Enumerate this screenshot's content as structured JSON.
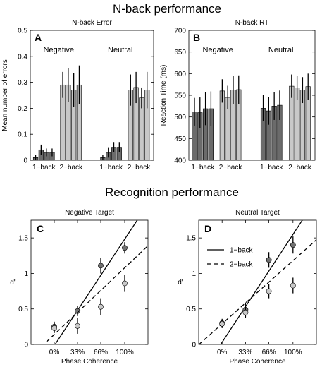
{
  "titles": {
    "top": "N-back performance",
    "bottom": "Recognition performance"
  },
  "colors": {
    "dark_bar": "#6b6b6b",
    "light_bar": "#c8c8c8",
    "dark_marker": "#707070",
    "light_marker": "#c9c9c9"
  },
  "chart_data": [
    {
      "panel": "A",
      "type": "bar",
      "title": "N-back Error",
      "ylabel": "Mean number of errors",
      "xlabel": "",
      "ylim": [
        0,
        0.5
      ],
      "yticks": [
        "0",
        "0.1",
        "0.2",
        "0.3",
        "0.4",
        "0.5"
      ],
      "group_labels": [
        "Negative",
        "Neutral"
      ],
      "xtick_labels": [
        "1−back",
        "2−back",
        "1−back",
        "2−back"
      ],
      "groups": [
        {
          "name": "Negative",
          "one_back": {
            "values": [
              0.01,
              0.04,
              0.03,
              0.03
            ],
            "err": [
              0.01,
              0.02,
              0.015,
              0.015
            ]
          },
          "two_back": {
            "values": [
              0.29,
              0.29,
              0.27,
              0.29
            ],
            "err": [
              0.05,
              0.065,
              0.065,
              0.075
            ]
          }
        },
        {
          "name": "Neutral",
          "one_back": {
            "values": [
              0.01,
              0.03,
              0.05,
              0.05
            ],
            "err": [
              0.01,
              0.02,
              0.02,
              0.02
            ]
          },
          "two_back": {
            "values": [
              0.27,
              0.28,
              0.24,
              0.27
            ],
            "err": [
              0.06,
              0.06,
              0.04,
              0.07
            ]
          }
        }
      ]
    },
    {
      "panel": "B",
      "type": "bar",
      "title": "N-back RT",
      "ylabel": "Reaction Time (ms)",
      "xlabel": "",
      "ylim": [
        400,
        700
      ],
      "yticks": [
        "400",
        "450",
        "500",
        "550",
        "600",
        "650",
        "700"
      ],
      "group_labels": [
        "Negative",
        "Neutral"
      ],
      "xtick_labels": [
        "1−back",
        "2−back",
        "1−back",
        "2−back"
      ],
      "groups": [
        {
          "name": "Negative",
          "one_back": {
            "values": [
              512,
              510,
              519,
              519
            ],
            "err": [
              32,
              35,
              38,
              40
            ]
          },
          "two_back": {
            "values": [
              560,
              545,
              562,
              563
            ],
            "err": [
              27,
              27,
              32,
              33
            ]
          }
        },
        {
          "name": "Neutral",
          "one_back": {
            "values": [
              520,
              514,
              525,
              527
            ],
            "err": [
              30,
              32,
              32,
              34
            ]
          },
          "two_back": {
            "values": [
              571,
              567,
              562,
              570
            ],
            "err": [
              27,
              28,
              30,
              30
            ]
          }
        }
      ]
    },
    {
      "panel": "C",
      "type": "scatter",
      "title": "Negative Target",
      "xlabel": "Phase Coherence",
      "ylabel": "d'",
      "xtick_labels": [
        "0%",
        "33%",
        "66%",
        "100%"
      ],
      "x": [
        0,
        33,
        66,
        100
      ],
      "xlim": [
        -33,
        133
      ],
      "ylim": [
        0,
        1.75
      ],
      "yticks": [
        "0",
        "0.5",
        "1",
        "1.5"
      ],
      "series": [
        {
          "name": "1-back",
          "y": [
            0.25,
            0.47,
            1.11,
            1.36
          ],
          "err": [
            0.07,
            0.07,
            0.11,
            0.08
          ],
          "fit": [
            -0.017,
            1.5
          ]
        },
        {
          "name": "2-back",
          "y": [
            0.23,
            0.26,
            0.53,
            0.86
          ],
          "err": [
            0.07,
            0.11,
            0.12,
            0.12
          ],
          "fit": [
            0.14,
            0.94
          ]
        }
      ]
    },
    {
      "panel": "D",
      "type": "scatter",
      "title": "Neutral Target",
      "xlabel": "Phase Coherence",
      "ylabel": "d'",
      "xtick_labels": [
        "0%",
        "33%",
        "66%",
        "100%"
      ],
      "x": [
        0,
        33,
        66,
        100
      ],
      "xlim": [
        -33,
        133
      ],
      "ylim": [
        0,
        1.75
      ],
      "yticks": [
        "0",
        "0.5",
        "1",
        "1.5"
      ],
      "legend": [
        "1−back",
        "2−back"
      ],
      "legend_position": "top-left",
      "series": [
        {
          "name": "1-back",
          "y": [
            0.3,
            0.49,
            1.19,
            1.4
          ],
          "err": [
            0.06,
            0.1,
            0.11,
            0.12
          ],
          "fit": [
            0.03,
            1.52
          ]
        },
        {
          "name": "2-back",
          "y": [
            0.29,
            0.45,
            0.75,
            0.83
          ],
          "err": [
            0.06,
            0.08,
            0.1,
            0.11
          ],
          "fit": [
            0.29,
            0.89
          ]
        }
      ]
    }
  ]
}
